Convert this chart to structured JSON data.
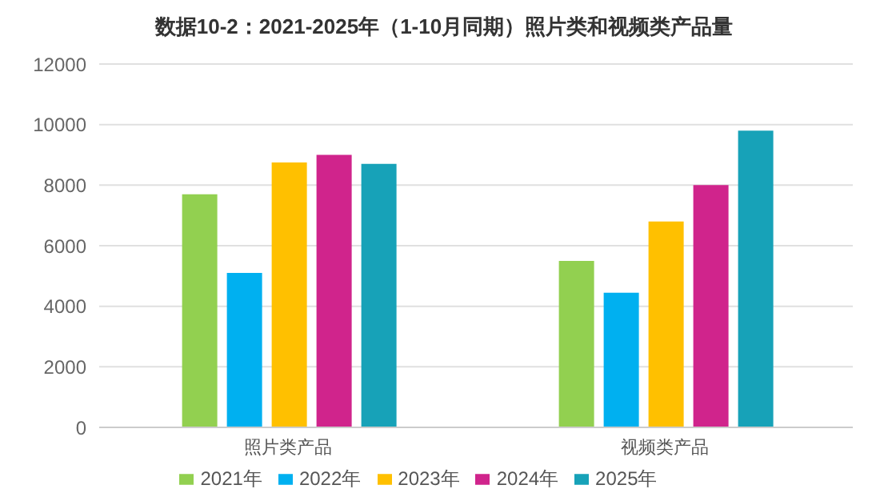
{
  "chart_data": {
    "type": "bar",
    "title": "数据10-2：2021-2025年（1-10月同期）照片类和视频类产品量",
    "categories": [
      "照片类产品",
      "视频类产品"
    ],
    "series": [
      {
        "name": "2021年",
        "color": "#92d050",
        "values": [
          7700,
          5500
        ]
      },
      {
        "name": "2022年",
        "color": "#00b0f0",
        "values": [
          5100,
          4450
        ]
      },
      {
        "name": "2023年",
        "color": "#ffc000",
        "values": [
          8750,
          6800
        ]
      },
      {
        "name": "2024年",
        "color": "#d0248c",
        "values": [
          9000,
          8000
        ]
      },
      {
        "name": "2025年",
        "color": "#17a2b8",
        "values": [
          8700,
          9800
        ]
      }
    ],
    "ylim": [
      0,
      12000
    ],
    "yticks": [
      0,
      2000,
      4000,
      6000,
      8000,
      10000,
      12000
    ],
    "grid": "y",
    "legend": "bottom"
  }
}
